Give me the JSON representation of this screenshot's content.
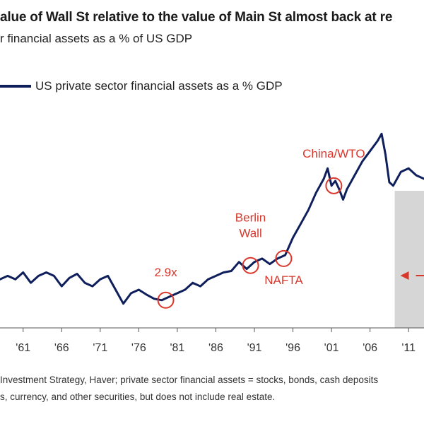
{
  "header": {
    "title": "alue of Wall St relative to the value of Main St almost back at re",
    "subtitle": "r financial assets as a % of US GDP"
  },
  "footer": {
    "line1": "Investment Strategy, Haver; private sector financial assets = stocks, bonds, cash deposits",
    "line2": "s, currency, and other securities, but does not include real estate."
  },
  "colors": {
    "series": "#0e1f5b",
    "annotation": "#d9372c",
    "shade": "#d6d6d6",
    "axis": "#555555"
  },
  "chart_data": {
    "type": "line",
    "title": "alue of Wall St relative to the value of Main St almost back at re",
    "xlabel": "",
    "ylabel": "",
    "x_ticks": [
      "'61",
      "'66",
      "'71",
      "'76",
      "'81",
      "'86",
      "'91",
      "'96",
      "'01",
      "'06",
      "'11"
    ],
    "xlim": [
      1958,
      2013
    ],
    "ylim": [
      2.5,
      5.7
    ],
    "grid": false,
    "legend": "top-left",
    "series": [
      {
        "name": "US private sector financial assets as a % GDP",
        "x": [
          1958,
          1959,
          1960,
          1961,
          1962,
          1963,
          1964,
          1965,
          1966,
          1967,
          1968,
          1969,
          1970,
          1971,
          1972,
          1973,
          1974,
          1975,
          1976,
          1977,
          1978,
          1979,
          1980,
          1981,
          1982,
          1983,
          1984,
          1985,
          1986,
          1987,
          1988,
          1989,
          1990,
          1991,
          1992,
          1993,
          1994,
          1995,
          1996,
          1997,
          1998,
          1999,
          2000,
          2000.5,
          2001,
          2001.5,
          2002,
          2002.5,
          2003,
          2004,
          2005,
          2006,
          2007,
          2007.5,
          2008,
          2008.5,
          2009,
          2010,
          2011,
          2012,
          2013
        ],
        "y": [
          3.2,
          3.25,
          3.2,
          3.3,
          3.15,
          3.25,
          3.3,
          3.25,
          3.1,
          3.22,
          3.28,
          3.15,
          3.1,
          3.2,
          3.25,
          3.05,
          2.85,
          3.0,
          3.05,
          2.98,
          2.92,
          2.9,
          2.95,
          3.0,
          3.05,
          3.15,
          3.1,
          3.2,
          3.25,
          3.3,
          3.32,
          3.45,
          3.35,
          3.45,
          3.5,
          3.42,
          3.5,
          3.55,
          3.8,
          4.0,
          4.2,
          4.45,
          4.65,
          4.8,
          4.55,
          4.62,
          4.5,
          4.35,
          4.5,
          4.7,
          4.9,
          5.05,
          5.2,
          5.3,
          5.0,
          4.6,
          4.55,
          4.75,
          4.8,
          4.7,
          4.65
        ]
      }
    ],
    "annotations": [
      {
        "label": "2.9x",
        "x": 1979.5,
        "y": 2.9
      },
      {
        "label": "Berlin Wall",
        "x": 1990.5,
        "y": 3.4
      },
      {
        "label": "NAFTA",
        "x": 1994.8,
        "y": 3.5
      },
      {
        "label": "China/WTO",
        "x": 2001.3,
        "y": 4.55
      }
    ],
    "shaded_region": {
      "x_start": 2009.2,
      "x_end": 2013
    }
  }
}
